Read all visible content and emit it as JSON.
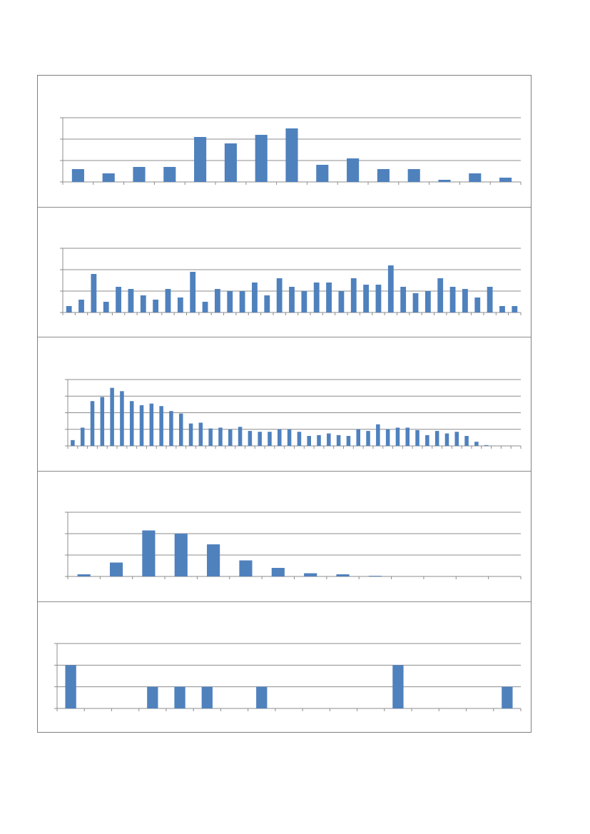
{
  "colors": {
    "bar": "#4f81bd",
    "axis": "#8c8c8c",
    "grid": "#8c8c8c",
    "border": "#7f7f7f"
  },
  "chart_data": [
    {
      "type": "bar",
      "grid": true,
      "legend": "none",
      "ylim": [
        0,
        3
      ],
      "values": [
        0.6,
        0.4,
        0.7,
        0.7,
        2.1,
        1.8,
        2.2,
        2.5,
        0.8,
        1.1,
        0.6,
        0.6,
        0.1,
        0.4,
        0.2
      ]
    },
    {
      "type": "bar",
      "grid": true,
      "legend": "none",
      "ylim": [
        0,
        3
      ],
      "values": [
        0.3,
        0.6,
        1.8,
        0.5,
        1.2,
        1.1,
        0.8,
        0.6,
        1.1,
        0.7,
        1.9,
        0.5,
        1.1,
        1.0,
        1.0,
        1.4,
        0.8,
        1.6,
        1.2,
        1.0,
        1.4,
        1.4,
        1.0,
        1.6,
        1.3,
        1.3,
        2.2,
        1.2,
        0.9,
        1.0,
        1.6,
        1.2,
        1.1,
        0.7,
        1.2,
        0.3,
        0.3
      ]
    },
    {
      "type": "bar",
      "grid": true,
      "legend": "none",
      "ylim": [
        0,
        4
      ],
      "values": [
        0.35,
        1.1,
        2.7,
        2.95,
        3.5,
        3.3,
        2.7,
        2.45,
        2.55,
        2.4,
        2.1,
        1.95,
        1.35,
        1.4,
        1.05,
        1.1,
        1.0,
        1.15,
        0.9,
        0.85,
        0.85,
        1.0,
        1.0,
        0.85,
        0.6,
        0.65,
        0.75,
        0.65,
        0.6,
        1.0,
        0.9,
        1.3,
        1.0,
        1.1,
        1.1,
        0.95,
        0.65,
        0.9,
        0.75,
        0.85,
        0.6,
        0.25,
        0.05,
        0,
        0,
        0
      ]
    },
    {
      "type": "bar",
      "grid": true,
      "legend": "none",
      "ylim": [
        0,
        3
      ],
      "values": [
        0.1,
        0.65,
        2.15,
        2.0,
        1.5,
        0.75,
        0.4,
        0.15,
        0.1,
        0.03,
        0,
        0,
        0,
        0
      ]
    },
    {
      "type": "bar",
      "grid": true,
      "legend": "none",
      "ylim": [
        0,
        3
      ],
      "values": [
        2,
        0,
        0,
        1,
        1,
        1,
        0,
        1,
        0,
        0,
        0,
        0,
        2,
        0,
        0,
        0,
        1
      ]
    }
  ]
}
